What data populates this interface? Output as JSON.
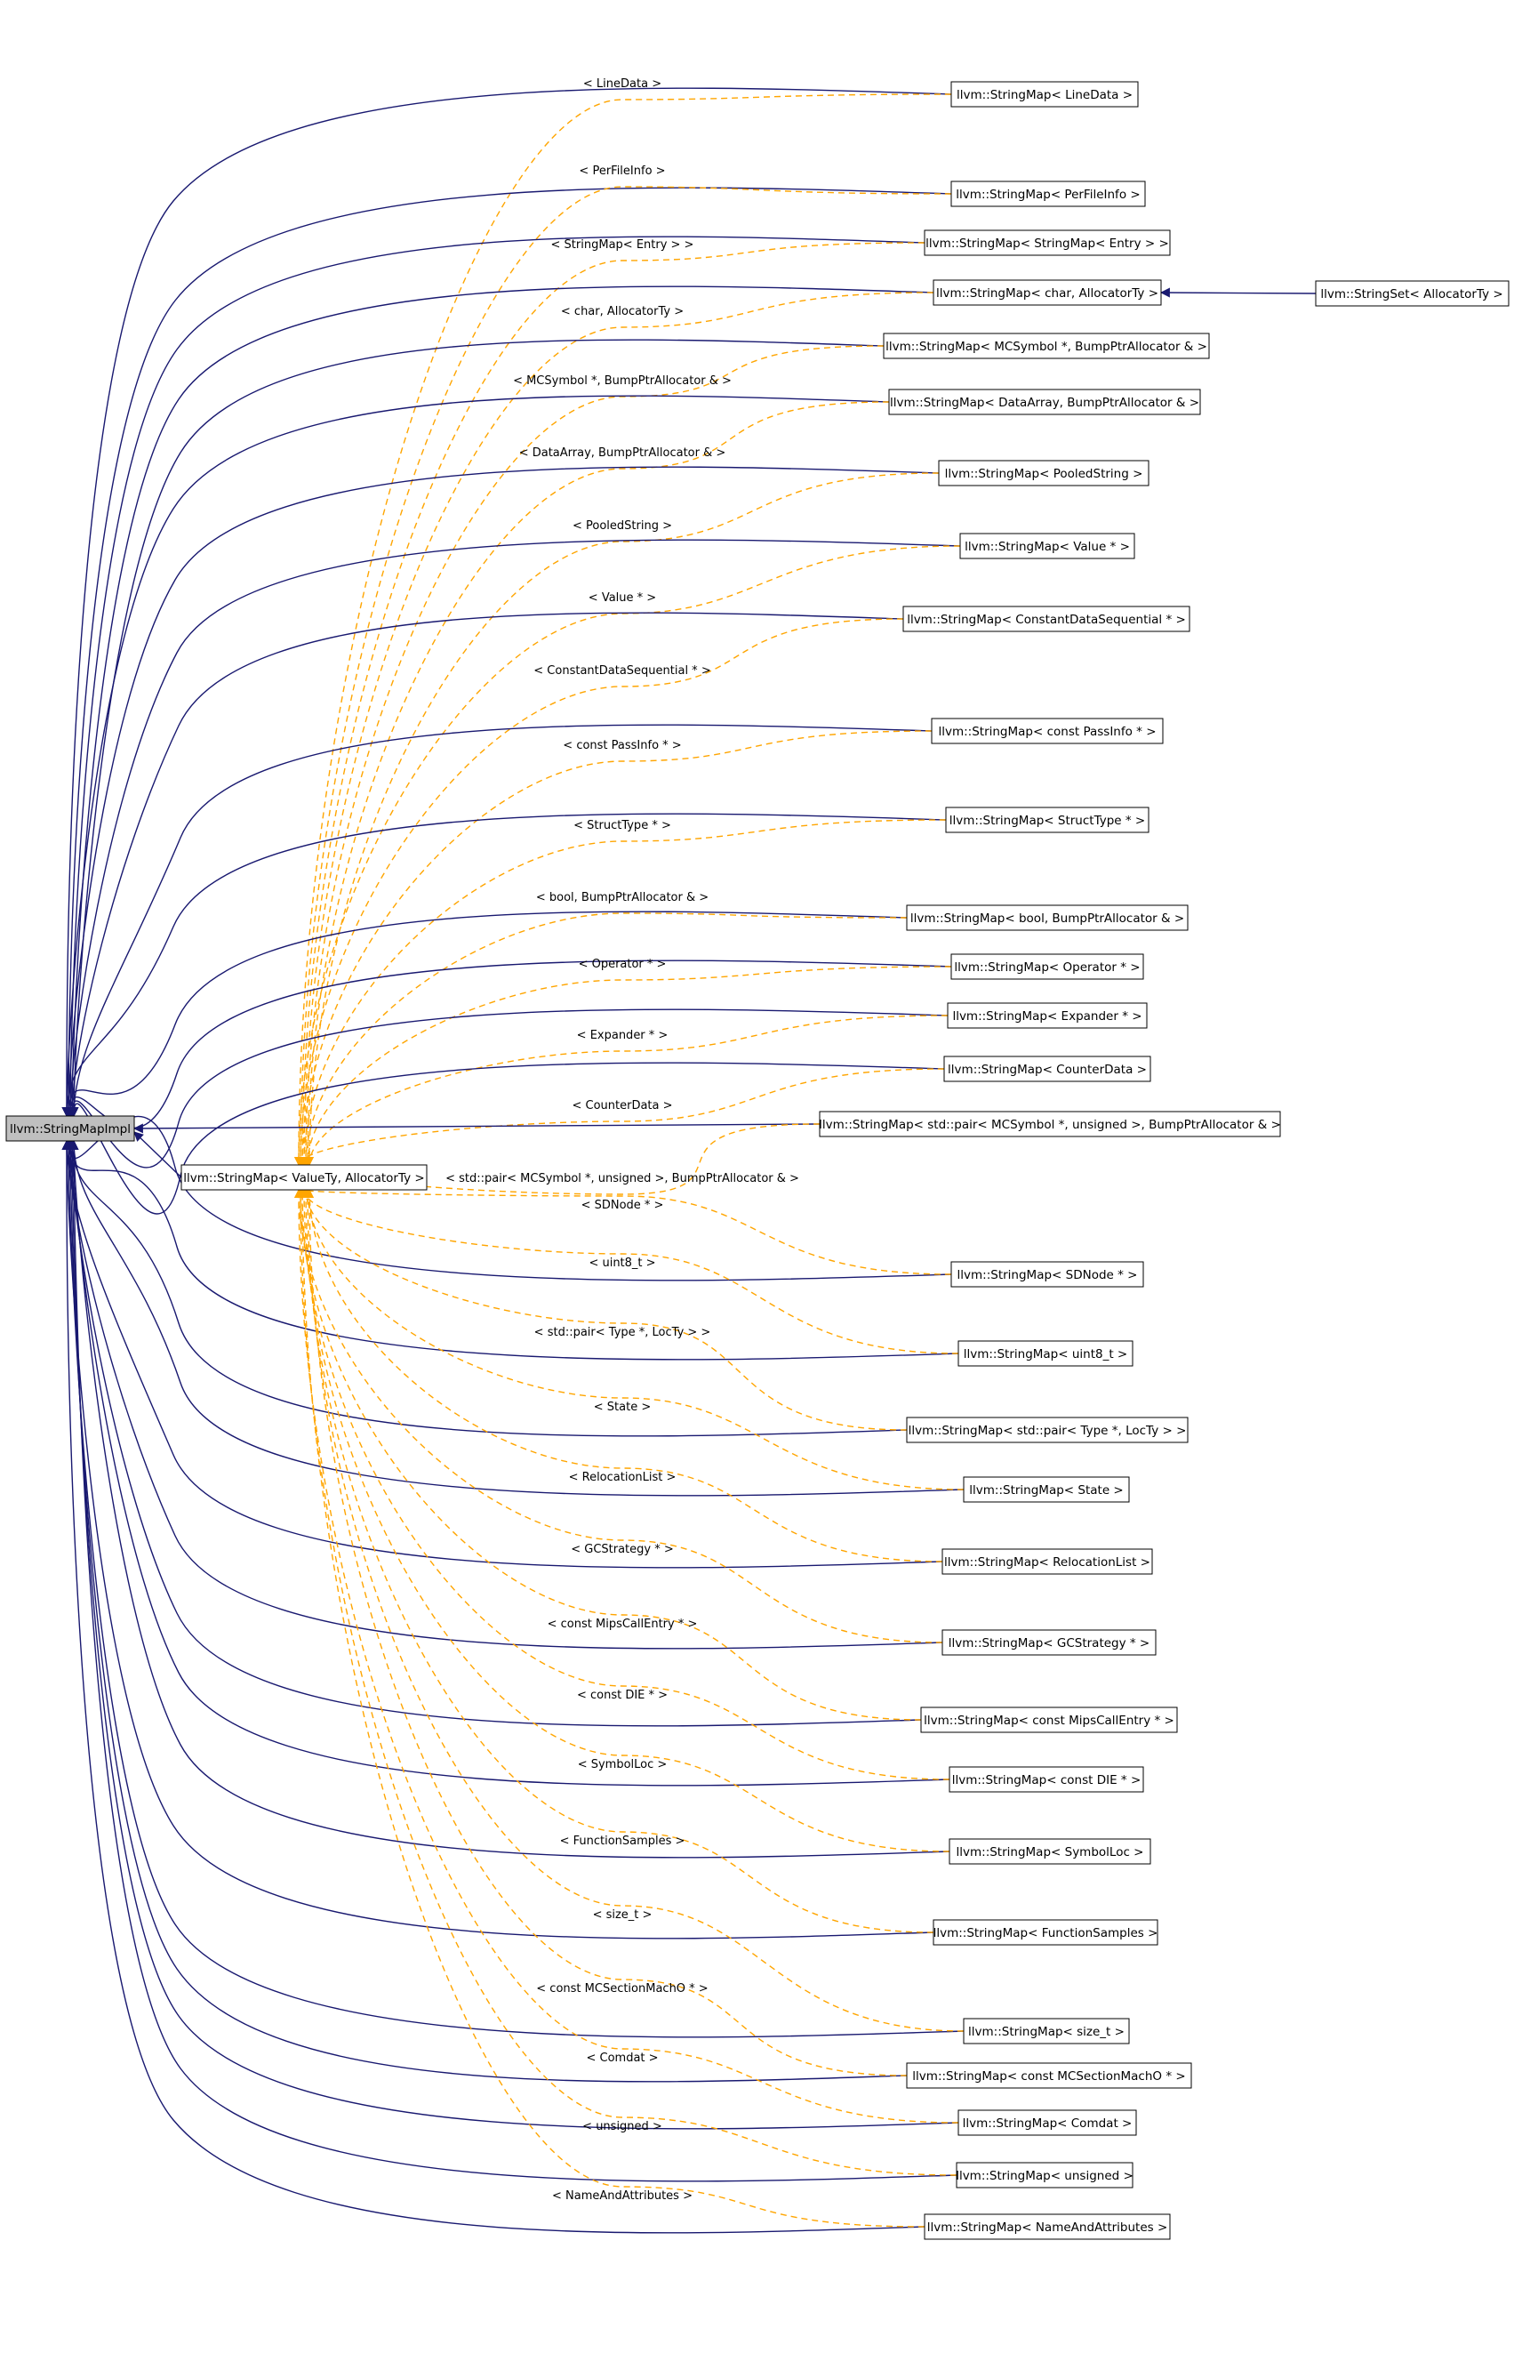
{
  "colors": {
    "inheritance_edge": "#191970",
    "template_edge": "#ffa500",
    "base_fill": "#bfbfbf",
    "node_fill": "#ffffff",
    "node_border": "#000000"
  },
  "nodes": {
    "base": "llvm::StringMapImpl",
    "template": "llvm::StringMap< ValueTy, AllocatorTy >",
    "stringset": "llvm::StringSet< AllocatorTy >"
  },
  "instantiations": [
    {
      "node": "llvm::StringMap< LineData >",
      "label": "< LineData >"
    },
    {
      "node": "llvm::StringMap< PerFileInfo >",
      "label": "< PerFileInfo >"
    },
    {
      "node": "llvm::StringMap< StringMap< Entry > >",
      "label": "< StringMap< Entry > >"
    },
    {
      "node": "llvm::StringMap< char, AllocatorTy >",
      "label": "< char, AllocatorTy >"
    },
    {
      "node": "llvm::StringMap< MCSymbol *, BumpPtrAllocator & >",
      "label": "< MCSymbol *, BumpPtrAllocator & >"
    },
    {
      "node": "llvm::StringMap< DataArray, BumpPtrAllocator & >",
      "label": "< DataArray, BumpPtrAllocator & >"
    },
    {
      "node": "llvm::StringMap< PooledString >",
      "label": "< PooledString >"
    },
    {
      "node": "llvm::StringMap< Value * >",
      "label": "< Value * >"
    },
    {
      "node": "llvm::StringMap< ConstantDataSequential * >",
      "label": "< ConstantDataSequential * >"
    },
    {
      "node": "llvm::StringMap< const PassInfo * >",
      "label": "< const PassInfo * >"
    },
    {
      "node": "llvm::StringMap< StructType * >",
      "label": "< StructType * >"
    },
    {
      "node": "llvm::StringMap< bool, BumpPtrAllocator & >",
      "label": "< bool, BumpPtrAllocator & >"
    },
    {
      "node": "llvm::StringMap< Operator * >",
      "label": "< Operator * >"
    },
    {
      "node": "llvm::StringMap< Expander * >",
      "label": "< Expander * >"
    },
    {
      "node": "llvm::StringMap< CounterData >",
      "label": "< CounterData >"
    },
    {
      "node": "llvm::StringMap< std::pair< MCSymbol *, unsigned >, BumpPtrAllocator & >",
      "label": "< std::pair< MCSymbol *, unsigned >, BumpPtrAllocator & >"
    },
    {
      "node": "llvm::StringMap< SDNode * >",
      "label": "< SDNode * >"
    },
    {
      "node": "llvm::StringMap< uint8_t >",
      "label": "< uint8_t >"
    },
    {
      "node": "llvm::StringMap< std::pair< Type *, LocTy > >",
      "label": "< std::pair< Type *, LocTy > >"
    },
    {
      "node": "llvm::StringMap< State >",
      "label": "< State >"
    },
    {
      "node": "llvm::StringMap< RelocationList >",
      "label": "< RelocationList >"
    },
    {
      "node": "llvm::StringMap< GCStrategy * >",
      "label": "< GCStrategy * >"
    },
    {
      "node": "llvm::StringMap< const MipsCallEntry * >",
      "label": "< const MipsCallEntry * >"
    },
    {
      "node": "llvm::StringMap< const DIE * >",
      "label": "< const DIE * >"
    },
    {
      "node": "llvm::StringMap< SymbolLoc >",
      "label": "< SymbolLoc >"
    },
    {
      "node": "llvm::StringMap< FunctionSamples >",
      "label": "< FunctionSamples >"
    },
    {
      "node": "llvm::StringMap< size_t >",
      "label": "< size_t >"
    },
    {
      "node": "llvm::StringMap< const MCSectionMachO * >",
      "label": "< const MCSectionMachO * >"
    },
    {
      "node": "llvm::StringMap< Comdat >",
      "label": "< Comdat >"
    },
    {
      "node": "llvm::StringMap< unsigned >",
      "label": "< unsigned >"
    },
    {
      "node": "llvm::StringMap< NameAndAttributes >",
      "label": "< NameAndAttributes >"
    }
  ]
}
